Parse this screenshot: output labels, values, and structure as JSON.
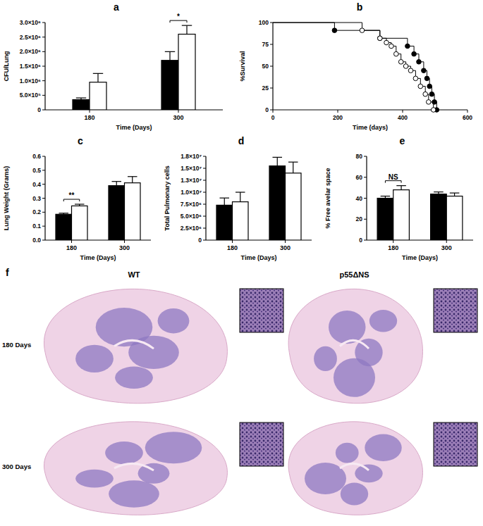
{
  "chart_data": [
    {
      "type": "bar",
      "title": "a",
      "x_label": "Time (Days)",
      "y_label": "CFU/Lung",
      "categories": [
        "180",
        "300"
      ],
      "series": [
        {
          "color": "#000000",
          "values": [
            350000,
            1700000
          ],
          "errors": [
            60000,
            300000
          ]
        },
        {
          "color": "#ffffff",
          "values": [
            950000,
            2600000
          ],
          "errors": [
            300000,
            300000
          ]
        }
      ],
      "ylim": [
        0,
        3000000
      ],
      "yticks": [
        0,
        {
          "value": 500000,
          "label": "5.0×10⁵"
        },
        {
          "value": 1000000,
          "label": "1.0×10⁶"
        },
        {
          "value": 1500000,
          "label": "1.5×10⁶"
        },
        {
          "value": 2000000,
          "label": "2.0×10⁶"
        },
        {
          "value": 2500000,
          "label": "2.5×10⁶"
        },
        {
          "value": 3000000,
          "label": "3.0×10⁶"
        }
      ],
      "annotations": [
        {
          "text": "*",
          "category": "300"
        }
      ]
    },
    {
      "type": "step",
      "title": "b",
      "x_label": "Time (days)",
      "y_label": "%Survival",
      "series": [
        {
          "color": "#000000",
          "marker": "circle",
          "x": [
            0,
            190,
            330,
            415,
            435,
            450,
            465,
            475,
            483,
            490,
            498,
            505
          ],
          "values": [
            100,
            91,
            82,
            73,
            64,
            55,
            45,
            36,
            27,
            18,
            9,
            0
          ]
        },
        {
          "color": "#ffffff",
          "marker": "circle",
          "x": [
            0,
            275,
            330,
            350,
            365,
            380,
            395,
            410,
            425,
            440,
            455,
            470,
            480,
            495
          ],
          "values": [
            100,
            91,
            82,
            77,
            73,
            64,
            55,
            50,
            45,
            36,
            27,
            18,
            9,
            0
          ]
        }
      ],
      "xlim": [
        0,
        600
      ],
      "xticks": [
        0,
        200,
        400,
        600
      ],
      "ylim": [
        0,
        100
      ],
      "yticks": [
        0,
        25,
        50,
        75,
        100
      ]
    },
    {
      "type": "bar",
      "title": "c",
      "x_label": "Time (Days)",
      "y_label": "Lung Weight (Grams)",
      "categories": [
        "180",
        "300"
      ],
      "series": [
        {
          "color": "#000000",
          "values": [
            0.185,
            0.39
          ],
          "errors": [
            0.008,
            0.03
          ]
        },
        {
          "color": "#ffffff",
          "values": [
            0.245,
            0.41
          ],
          "errors": [
            0.012,
            0.045
          ]
        }
      ],
      "ylim": [
        0,
        0.6
      ],
      "yticks": [
        {
          "value": 0,
          "label": "0.0"
        },
        0.1,
        0.2,
        0.3,
        0.4,
        0.5,
        0.6
      ],
      "annotations": [
        {
          "text": "**",
          "category": "180"
        }
      ]
    },
    {
      "type": "bar",
      "title": "d",
      "x_label": "Time (Days)",
      "y_label": "Total Pulmonary cells",
      "categories": [
        "180",
        "300"
      ],
      "series": [
        {
          "color": "#000000",
          "values": [
            7300000,
            15500000
          ],
          "errors": [
            1500000,
            1800000
          ]
        },
        {
          "color": "#ffffff",
          "values": [
            8000000,
            14000000
          ],
          "errors": [
            2000000,
            2300000
          ]
        }
      ],
      "ylim": [
        0,
        17500000
      ],
      "yticks": [
        0,
        {
          "value": 2500000,
          "label": "2.5×10⁶"
        },
        {
          "value": 5000000,
          "label": "5.0×10⁶"
        },
        {
          "value": 7500000,
          "label": "7.5×10⁶"
        },
        {
          "value": 10000000,
          "label": "1.0×10⁷"
        },
        {
          "value": 12500000,
          "label": "1.3×10⁷"
        },
        {
          "value": 15000000,
          "label": "1.5×10⁷"
        },
        {
          "value": 17500000,
          "label": "1.8×10⁷"
        }
      ]
    },
    {
      "type": "bar",
      "title": "e",
      "x_label": "Time (Days)",
      "y_label": "% Free avelar space",
      "categories": [
        "180",
        "300"
      ],
      "series": [
        {
          "color": "#000000",
          "values": [
            40,
            44
          ],
          "errors": [
            2,
            2
          ]
        },
        {
          "color": "#ffffff",
          "values": [
            48,
            42
          ],
          "errors": [
            4,
            3
          ]
        }
      ],
      "ylim": [
        0,
        80
      ],
      "yticks": [
        0,
        20,
        40,
        60,
        80
      ],
      "annotations": [
        {
          "text": "NS",
          "category": "180"
        }
      ]
    }
  ],
  "images": {
    "title": "f",
    "columns": [
      "WT",
      "p55ΔNS"
    ],
    "rows": [
      "180 Days",
      "300 Days"
    ]
  }
}
